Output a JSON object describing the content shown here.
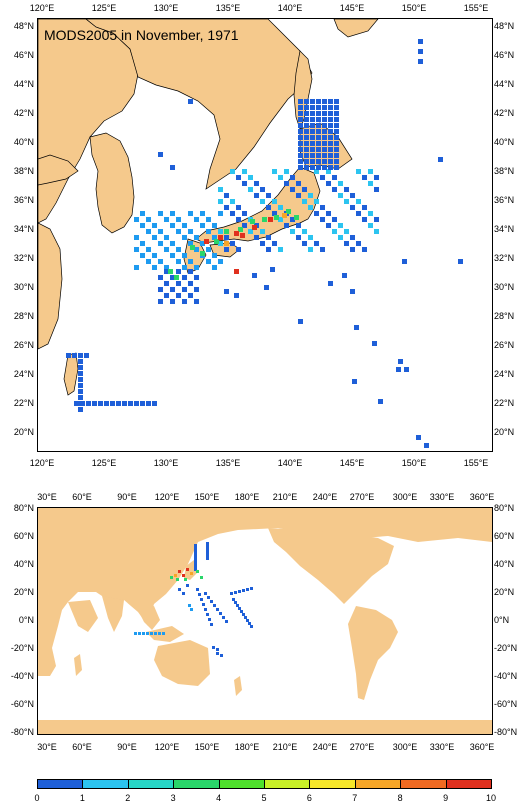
{
  "title": "MODS2005 in November, 1971",
  "top_map": {
    "lon_labels": [
      "120°E",
      "125°E",
      "130°E",
      "135°E",
      "140°E",
      "145°E",
      "150°E",
      "155°E"
    ],
    "lat_labels": [
      "48°N",
      "46°N",
      "44°N",
      "42°N",
      "40°N",
      "38°N",
      "36°N",
      "34°N",
      "32°N",
      "30°N",
      "28°N",
      "26°N",
      "24°N",
      "22°N",
      "20°N"
    ]
  },
  "bottom_map": {
    "lon_labels": [
      "30°E",
      "60°E",
      "90°E",
      "120°E",
      "150°E",
      "180°E",
      "210°E",
      "240°E",
      "270°E",
      "300°E",
      "330°E",
      "360°E"
    ],
    "lat_labels": [
      "80°N",
      "60°N",
      "40°N",
      "20°N",
      "0°N",
      "-20°N",
      "-40°N",
      "-60°N",
      "-80°N"
    ]
  },
  "colorbar": {
    "labels": [
      "0",
      "1",
      "2",
      "3",
      "4",
      "5",
      "6",
      "7",
      "8",
      "9",
      "10"
    ],
    "colors": [
      "#1e5fd8",
      "#1e9bf0",
      "#2cc4f0",
      "#28d6c6",
      "#2ad66a",
      "#4fe02c",
      "#c8f028",
      "#f6e62a",
      "#f6a628",
      "#f06a22",
      "#e0301e"
    ]
  },
  "land_color": "#f5c98c"
}
